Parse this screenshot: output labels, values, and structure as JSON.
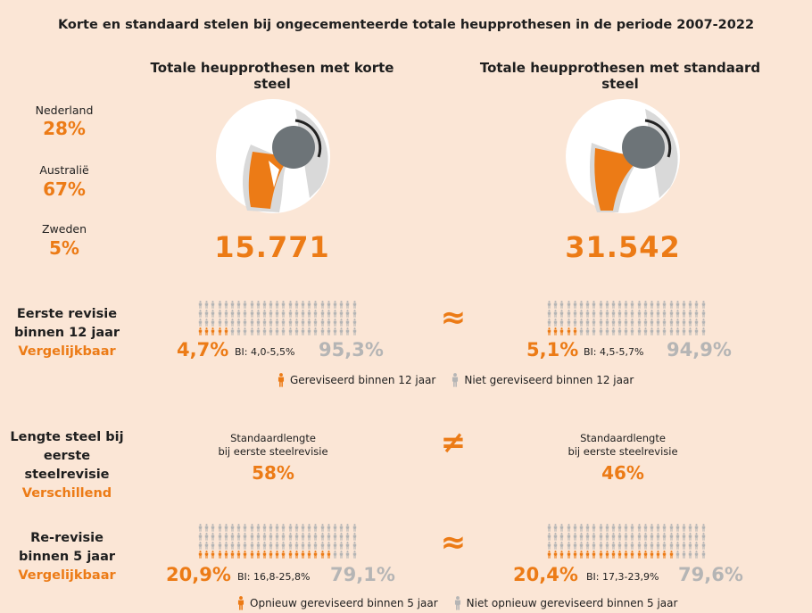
{
  "title": "Korte en standaard stelen bij ongecementeerde totale heupprothesen in de periode 2007-2022",
  "colors": {
    "orange": "#ec7b16",
    "grey": "#b5b5b5",
    "background": "#fbe6d6"
  },
  "columns": {
    "left": {
      "heading": "Totale heupprothesen met korte steel",
      "total": "15.771"
    },
    "right": {
      "heading": "Totale heupprothesen met standaard steel",
      "total": "31.542"
    }
  },
  "countries": [
    {
      "name": "Nederland",
      "value": "28%"
    },
    {
      "name": "Australië",
      "value": "67%"
    },
    {
      "name": "Zweden",
      "value": "5%"
    }
  ],
  "rows": {
    "first_revision": {
      "label_line1": "Eerste revisie",
      "label_line2": "binnen 12 jaar",
      "verdict": "Vergelijkbaar",
      "symbol": "≈",
      "left": {
        "revised": "4,7%",
        "ci": "BI: 4,0-5,5%",
        "not_revised": "95,3%",
        "revised_fraction": 0.047
      },
      "right": {
        "revised": "5,1%",
        "ci": "BI: 4,5-5,7%",
        "not_revised": "94,9%",
        "revised_fraction": 0.051
      },
      "legend_revised": "Gereviseerd binnen 12 jaar",
      "legend_not_revised": "Niet gereviseerd binnen 12 jaar"
    },
    "stem_length": {
      "label_line1": "Lengte steel bij",
      "label_line2": "eerste steelrevisie",
      "verdict": "Verschillend",
      "symbol": "≠",
      "left": {
        "text_line1": "Standaardlengte",
        "text_line2": "bij eerste steelrevisie",
        "value": "58%"
      },
      "right": {
        "text_line1": "Standaardlengte",
        "text_line2": "bij eerste steelrevisie",
        "value": "46%"
      }
    },
    "re_revision": {
      "label_line1": "Re-revisie",
      "label_line2": "binnen 5 jaar",
      "verdict": "Vergelijkbaar",
      "symbol": "≈",
      "left": {
        "revised": "20,9%",
        "ci": "BI: 16,8-25,8%",
        "not_revised": "79,1%",
        "revised_fraction": 0.209
      },
      "right": {
        "revised": "20,4%",
        "ci": "BI: 17,3-23,9%",
        "not_revised": "79,6%",
        "revised_fraction": 0.204
      },
      "legend_revised": "Opnieuw gereviseerd binnen 5 jaar",
      "legend_not_revised": "Niet opnieuw gereviseerd binnen 5 jaar"
    }
  }
}
